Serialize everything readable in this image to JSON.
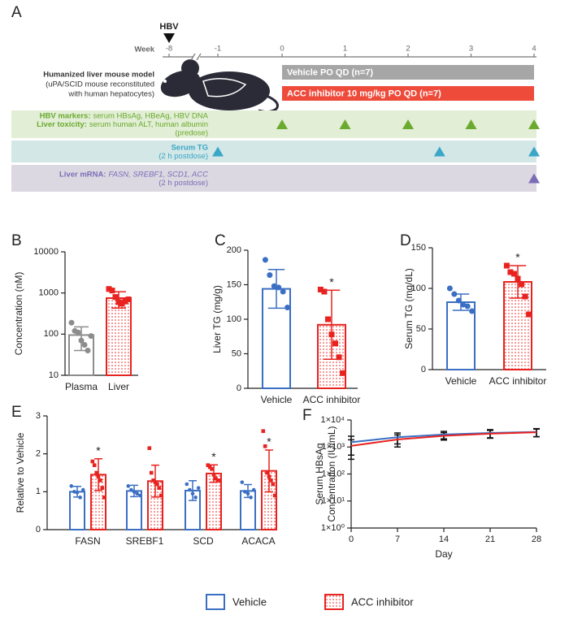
{
  "timeline": {
    "panel": "A",
    "hbv": "HBV",
    "hbv_week": -8,
    "week_label": "Week",
    "weeks": [
      -8,
      -1,
      0,
      1,
      2,
      3,
      4
    ],
    "model": [
      "Humanized liver mouse model",
      "(uPA/SCID mouse reconstituted",
      "with human hepatocytes)"
    ],
    "treatments": [
      {
        "label": "Vehicle PO QD (n=7)",
        "color": "#a6a6a6",
        "start": 0,
        "end": 4
      },
      {
        "label": "ACC inhibitor 10 mg/kg PO QD (n=7)",
        "color": "#ee4b3b",
        "start": 0,
        "end": 4
      }
    ],
    "rows": [
      {
        "color": "#e2eed5",
        "marker": "#6aaa2f",
        "lines": [
          [
            {
              "text": "HBV markers:",
              "style": "bold"
            },
            {
              "text": "serum HBsAg, HBeAg, HBV DNA",
              "style": "normal"
            }
          ],
          [
            {
              "text": "Liver toxicity:",
              "style": "bold"
            },
            {
              "text": "serum human ALT, human albumin",
              "style": "normal"
            }
          ],
          [
            {
              "text": "(predose)",
              "style": "normal"
            }
          ]
        ],
        "weeks": [
          0,
          1,
          2,
          3,
          4
        ]
      },
      {
        "color": "#d3e7e6",
        "marker": "#3aa6c8",
        "lines": [
          [
            {
              "text": "Serum TG",
              "style": "bold"
            }
          ],
          [
            {
              "text": "(2 h postdose)",
              "style": "normal"
            }
          ]
        ],
        "weeks": [
          -1,
          2.5,
          4
        ]
      },
      {
        "color": "#dcd8e1",
        "marker": "#7a6db5",
        "lines": [
          [
            {
              "text": "Liver mRNA:",
              "style": "bold"
            },
            {
              "text": "FASN, SREBF1, SCD1, ACC",
              "style": "italic"
            }
          ],
          [
            {
              "text": "(2 h postdose)",
              "style": "normal"
            }
          ]
        ],
        "weeks": [
          4
        ]
      }
    ]
  },
  "chart_data": [
    {
      "type": "bar",
      "panel": "B",
      "ylabel": "Concentration (nM)",
      "log": true,
      "categories": [
        "Plasma",
        "Liver"
      ],
      "values": [
        95,
        750
      ],
      "errors": [
        55,
        320
      ],
      "points": [
        [
          190,
          120,
          110,
          70,
          55,
          40,
          90
        ],
        [
          1250,
          1150,
          800,
          600,
          550,
          620,
          700
        ]
      ],
      "colors": [
        "#8c8c8c",
        "#e8231f"
      ],
      "shapes": [
        "circle",
        "square"
      ],
      "pattern": [
        false,
        true
      ],
      "stars": [
        null,
        null
      ],
      "ylim": [
        10,
        10000
      ],
      "yticks": [
        10,
        100,
        1000,
        10000
      ]
    },
    {
      "type": "bar",
      "panel": "C",
      "ylabel": "Liver TG (mg/g)",
      "log": false,
      "categories": [
        "Vehicle",
        "ACC inhibitor"
      ],
      "values": [
        144,
        92
      ],
      "errors": [
        28,
        50
      ],
      "points": [
        [
          186,
          164,
          148,
          146,
          140,
          117
        ],
        [
          143,
          140,
          100,
          78,
          65,
          45,
          22
        ]
      ],
      "colors": [
        "#3a6fc4",
        "#e8231f"
      ],
      "shapes": [
        "circle",
        "square"
      ],
      "pattern": [
        false,
        true
      ],
      "stars": [
        null,
        "*"
      ],
      "ylim": [
        0,
        200
      ],
      "yticks": [
        0,
        50,
        100,
        150,
        200
      ]
    },
    {
      "type": "bar",
      "panel": "D",
      "ylabel": "Serum TG (mg/dL)",
      "log": false,
      "categories": [
        "Vehicle",
        "ACC inhibitor"
      ],
      "values": [
        83,
        108
      ],
      "errors": [
        10,
        20
      ],
      "points": [
        [
          100,
          93,
          85,
          80,
          78,
          72
        ],
        [
          128,
          120,
          118,
          112,
          105,
          90,
          68
        ]
      ],
      "colors": [
        "#3a6fc4",
        "#e8231f"
      ],
      "shapes": [
        "circle",
        "square"
      ],
      "pattern": [
        false,
        true
      ],
      "stars": [
        null,
        "*"
      ],
      "ylim": [
        0,
        150
      ],
      "yticks": [
        0,
        50,
        100,
        150
      ]
    },
    {
      "type": "grouped_bar",
      "panel": "E",
      "ylabel": "Relative to Vehicle",
      "log": false,
      "categories": [
        "FASN",
        "SREBF1",
        "SCD",
        "ACACA"
      ],
      "series": [
        {
          "name": "Vehicle",
          "color": "#3a6fc4",
          "pattern": false,
          "shape": "circle",
          "values": [
            1.0,
            1.02,
            1.03,
            1.02
          ],
          "errors": [
            0.14,
            0.15,
            0.26,
            0.17
          ],
          "points": [
            [
              1.15,
              1.0,
              0.98,
              0.85,
              1.05
            ],
            [
              1.15,
              1.05,
              1.0,
              0.95,
              0.9
            ],
            [
              1.2,
              1.05,
              0.95,
              0.85,
              1.1
            ],
            [
              1.25,
              1.0,
              0.95,
              0.85,
              1.05
            ]
          ],
          "stars": [
            null,
            null,
            null,
            null
          ]
        },
        {
          "name": "ACC inhibitor",
          "color": "#e8231f",
          "pattern": true,
          "shape": "square",
          "values": [
            1.45,
            1.28,
            1.48,
            1.55
          ],
          "errors": [
            0.42,
            0.42,
            0.23,
            0.55
          ],
          "points": [
            [
              1.8,
              1.7,
              1.5,
              1.4,
              1.3,
              1.1,
              0.85
            ],
            [
              2.15,
              1.5,
              1.3,
              1.25,
              1.2,
              1.1,
              0.9
            ],
            [
              1.7,
              1.65,
              1.6,
              1.45,
              1.35,
              1.3,
              1.3
            ],
            [
              2.6,
              2.2,
              1.5,
              1.4,
              1.3,
              1.2,
              0.9
            ]
          ],
          "stars": [
            "*",
            null,
            "*",
            "*"
          ]
        }
      ],
      "ylim": [
        0,
        3
      ],
      "yticks": [
        0,
        1,
        2,
        3
      ]
    },
    {
      "type": "line",
      "panel": "F",
      "ylabel": [
        "Serum HBsAg",
        "Concentration (IU/mL)"
      ],
      "xlabel": "Day",
      "log": true,
      "x": [
        0,
        7,
        14,
        21,
        28
      ],
      "xlim": [
        0,
        28
      ],
      "xticks": [
        0,
        7,
        14,
        21,
        28
      ],
      "series": [
        {
          "color": "#3a6fc4",
          "values": [
            1500,
            2300,
            2900,
            3300,
            3600
          ],
          "errors": [
            1000,
            1000,
            900,
            1100,
            1200
          ]
        },
        {
          "color": "#e8231f",
          "values": [
            1100,
            1900,
            2600,
            3100,
            3500
          ],
          "errors": [
            750,
            900,
            800,
            1000,
            1100
          ]
        }
      ],
      "ylim": [
        1,
        10000
      ],
      "yticks": [
        {
          "value": 1,
          "label": "1×10⁰"
        },
        {
          "value": 10,
          "label": "1×10¹"
        },
        {
          "value": 100,
          "label": "1×10²"
        },
        {
          "value": 1000,
          "label": "1×10³"
        },
        {
          "value": 10000,
          "label": "1×10⁴"
        }
      ]
    }
  ]
}
